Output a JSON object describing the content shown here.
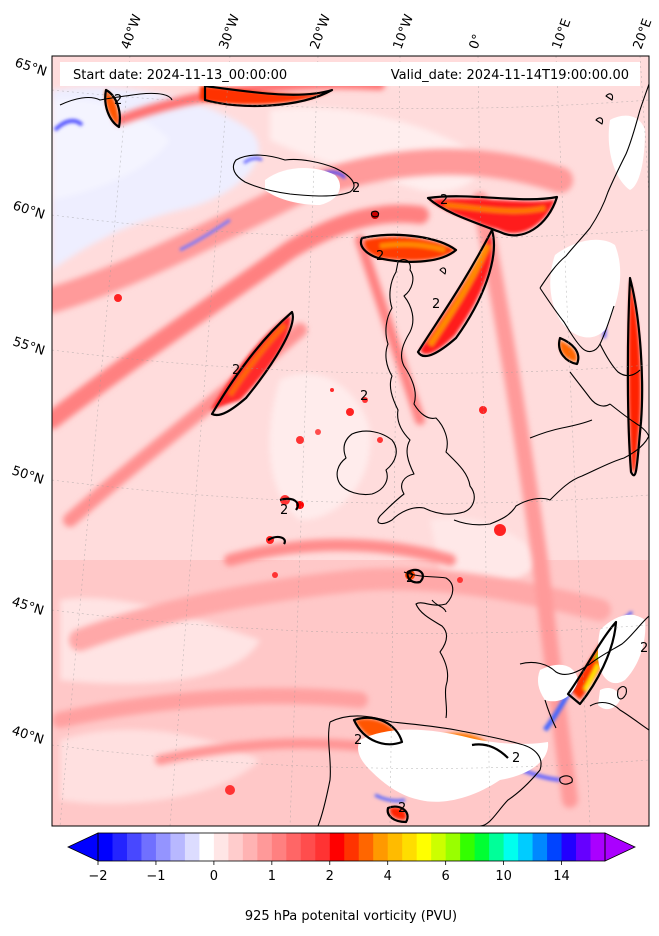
{
  "header": {
    "start_date": "Start date: 2024-11-13_00:00:00",
    "valid_date": "Valid_date: 2024-11-14T19:00:00.00"
  },
  "map": {
    "lon_labels": [
      "40°W",
      "30°W",
      "20°W",
      "10°W",
      "0°",
      "10°E",
      "20°E"
    ],
    "lat_labels": [
      "65°N",
      "60°N",
      "55°N",
      "50°N",
      "45°N",
      "40°N"
    ],
    "contour_level_label": "2"
  },
  "colorbar": {
    "title": "925 hPa potenital vorticity (PVU)",
    "tick_labels": [
      "−2",
      "−1",
      "0",
      "1",
      "2",
      "4",
      "6",
      "10",
      "14"
    ],
    "colors": [
      "#0000ff",
      "#2424ff",
      "#4848ff",
      "#7070ff",
      "#9494ff",
      "#b8b8ff",
      "#dcdcff",
      "#ffffff",
      "#ffe6e6",
      "#ffcccc",
      "#ffb3b3",
      "#ff9999",
      "#ff8080",
      "#ff6666",
      "#ff4d4d",
      "#ff3333",
      "#ff0000",
      "#ff3300",
      "#ff6600",
      "#ff9900",
      "#ffbb00",
      "#ffdd00",
      "#ffff00",
      "#ccff00",
      "#99ff00",
      "#33ff00",
      "#00ff33",
      "#00ff99",
      "#00ffee",
      "#00ccff",
      "#0088ff",
      "#0044ff",
      "#2200ff",
      "#6600ff",
      "#aa00ff"
    ],
    "under_color": "#0000ff",
    "over_color": "#aa00ff"
  }
}
